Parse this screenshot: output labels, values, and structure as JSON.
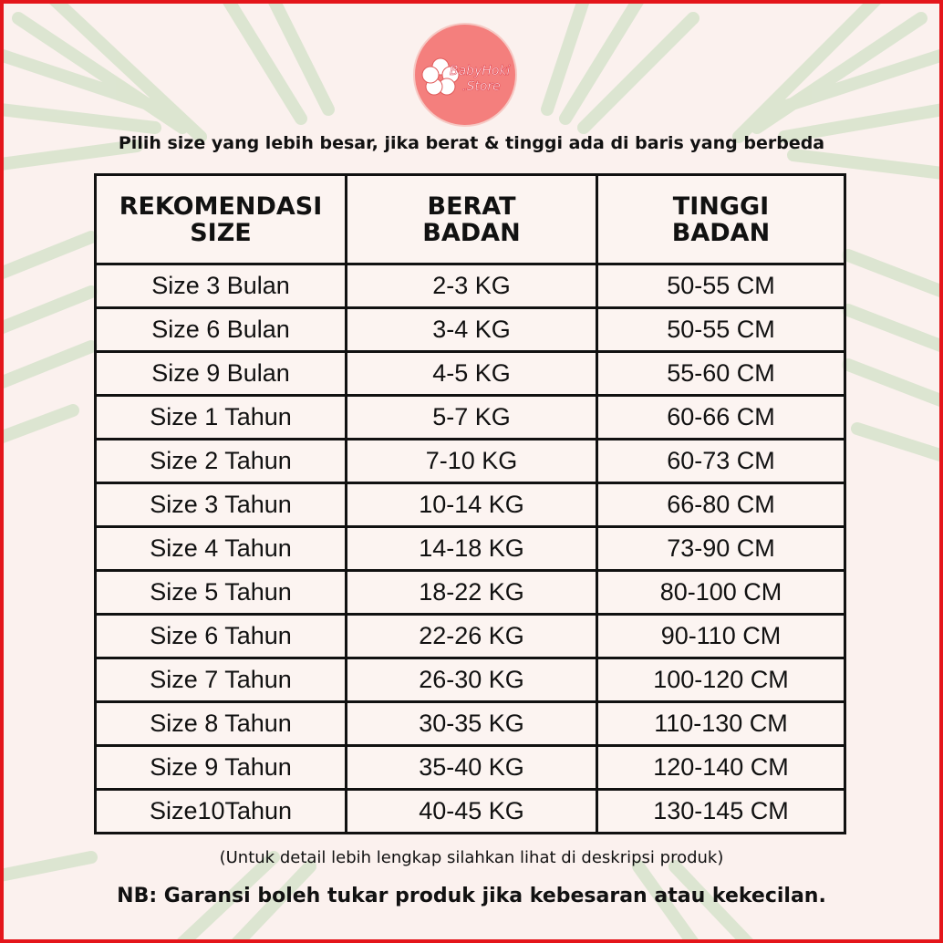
{
  "logo": {
    "line1": "BabyHoki",
    "line2": ".Store",
    "color": "#f47f7d"
  },
  "note_top": "Pilih size yang lebih besar, jika berat & tinggi ada di baris yang berbeda",
  "table": {
    "headers": [
      [
        "REKOMENDASI",
        "SIZE"
      ],
      [
        "BERAT",
        "BADAN"
      ],
      [
        "TINGGI",
        "BADAN"
      ]
    ],
    "rows": [
      [
        "Size 3 Bulan",
        "2-3 KG",
        "50-55 CM"
      ],
      [
        "Size 6 Bulan",
        "3-4 KG",
        "50-55 CM"
      ],
      [
        "Size 9 Bulan",
        "4-5 KG",
        "55-60 CM"
      ],
      [
        "Size 1 Tahun",
        "5-7 KG",
        "60-66 CM"
      ],
      [
        "Size 2 Tahun",
        "7-10 KG",
        "60-73 CM"
      ],
      [
        "Size 3 Tahun",
        "10-14 KG",
        "66-80 CM"
      ],
      [
        "Size 4 Tahun",
        "14-18 KG",
        "73-90 CM"
      ],
      [
        "Size 5 Tahun",
        "18-22 KG",
        "80-100 CM"
      ],
      [
        "Size 6 Tahun",
        "22-26 KG",
        "90-110 CM"
      ],
      [
        "Size 7 Tahun",
        "26-30 KG",
        "100-120 CM"
      ],
      [
        "Size 8 Tahun",
        "30-35 KG",
        "110-130 CM"
      ],
      [
        "Size 9 Tahun",
        "35-40 KG",
        "120-140 CM"
      ],
      [
        "Size10Tahun",
        "40-45 KG",
        "130-145 CM"
      ]
    ]
  },
  "note_mid": "(Untuk detail lebih lengkap silahkan lihat di deskripsi produk)",
  "note_bot": "NB: Garansi boleh tukar produk jika kebesaran atau kekecilan.",
  "colors": {
    "border": "#e4161b",
    "background": "#fbf1ee",
    "leaves": "#cfe0c4"
  }
}
